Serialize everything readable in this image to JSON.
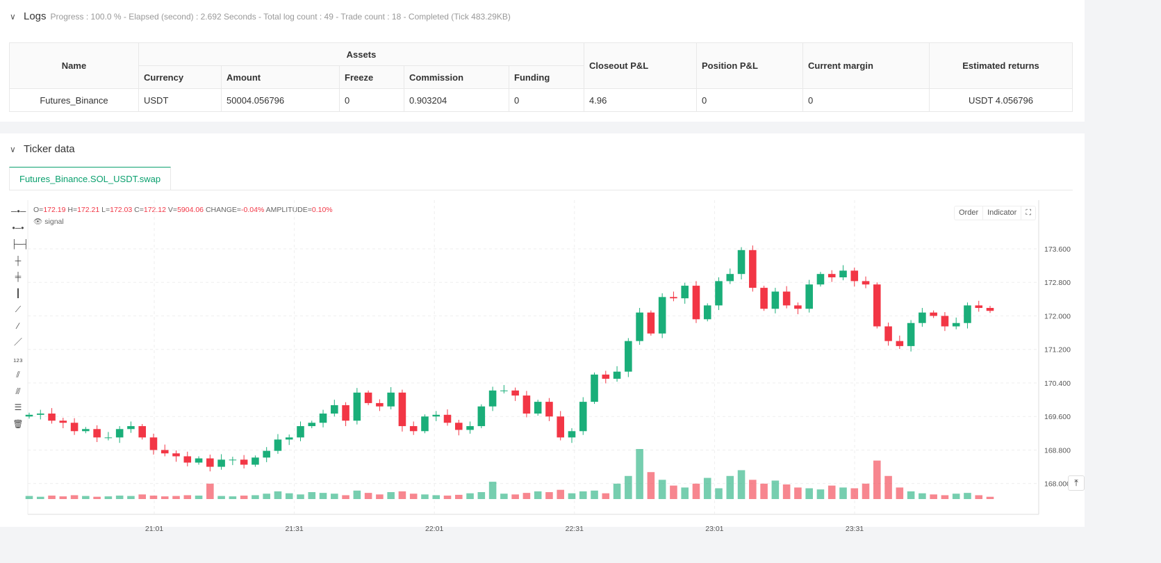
{
  "logs": {
    "title": "Logs",
    "summary": "Progress : 100.0 % - Elapsed (second) : 2.692  Seconds - Total log count : 49 - Trade count : 18 - Completed (Tick 483.29KB)",
    "table": {
      "headers": {
        "name": "Name",
        "assets": "Assets",
        "currency": "Currency",
        "amount": "Amount",
        "freeze": "Freeze",
        "commission": "Commission",
        "funding": "Funding",
        "closeout": "Closeout P&L",
        "position": "Position P&L",
        "margin": "Current margin",
        "returns": "Estimated returns"
      },
      "row": {
        "name": "Futures_Binance",
        "currency": "USDT",
        "amount": "50004.056796",
        "freeze": "0",
        "commission": "0.903204",
        "funding": "0",
        "closeout": "4.96",
        "position": "0",
        "margin": "0",
        "returns": "USDT 4.056796"
      }
    }
  },
  "ticker": {
    "title": "Ticker data",
    "tab": "Futures_Binance.SOL_USDT.swap",
    "legend": {
      "o_label": "O=",
      "o": "172.19",
      "h_label": "H=",
      "h": "172.21",
      "l_label": "L=",
      "l": "172.03",
      "c_label": "C=",
      "c": "172.12",
      "v_label": "V=",
      "v": "5904.06",
      "change_label": "CHANGE=",
      "change": "-0.04%",
      "amp_label": "AMPLITUDE=",
      "amp": "0.10%"
    },
    "signal": "signal",
    "order": "Order",
    "indicator": "Indicator"
  },
  "chart_data": {
    "type": "candlestick",
    "up_color": "#1aae79",
    "down_color": "#f23645",
    "ylim": [
      167.8,
      174.0
    ],
    "y_ticks": [
      "173.600",
      "172.800",
      "172.000",
      "171.200",
      "170.400",
      "169.600",
      "168.800",
      "168.000"
    ],
    "x_ticks": [
      "21:01",
      "21:31",
      "22:01",
      "22:31",
      "23:01",
      "23:31"
    ],
    "first_open": 169.6,
    "close": [
      169.64,
      169.67,
      169.5,
      169.45,
      169.25,
      169.3,
      169.1,
      169.1,
      169.3,
      169.37,
      169.1,
      168.8,
      168.72,
      168.65,
      168.5,
      168.6,
      168.4,
      168.57,
      168.57,
      168.45,
      168.62,
      168.78,
      169.05,
      169.1,
      169.37,
      169.45,
      169.67,
      169.87,
      169.5,
      170.17,
      169.92,
      169.84,
      170.17,
      169.37,
      169.25,
      169.6,
      169.64,
      169.45,
      169.28,
      169.37,
      169.84,
      170.22,
      170.22,
      170.1,
      169.67,
      169.95,
      169.6,
      169.1,
      169.25,
      169.95,
      170.6,
      170.5,
      170.67,
      171.4,
      172.08,
      171.58,
      172.45,
      172.42,
      172.72,
      171.92,
      172.25,
      172.83,
      173.0,
      173.57,
      172.67,
      172.17,
      172.58,
      172.25,
      172.17,
      172.75,
      173.0,
      172.92,
      173.08,
      172.83,
      172.75,
      171.75,
      171.4,
      171.28,
      171.83,
      172.08,
      172.0,
      171.75,
      171.83,
      172.25,
      172.19,
      172.12
    ],
    "volume": [
      8000,
      6000,
      9000,
      7000,
      10000,
      8000,
      6000,
      7000,
      9000,
      8000,
      12000,
      9000,
      7000,
      8000,
      10000,
      9000,
      40000,
      8000,
      7000,
      9000,
      10000,
      14000,
      20000,
      15000,
      12000,
      18000,
      16000,
      14000,
      10000,
      22000,
      16000,
      12000,
      18000,
      20000,
      14000,
      12000,
      10000,
      9000,
      11000,
      15000,
      18000,
      45000,
      14000,
      12000,
      16000,
      20000,
      18000,
      24000,
      15000,
      20000,
      22000,
      15000,
      40000,
      60000,
      130000,
      70000,
      50000,
      35000,
      30000,
      40000,
      55000,
      28000,
      60000,
      75000,
      50000,
      40000,
      48000,
      38000,
      30000,
      28000,
      25000,
      35000,
      30000,
      28000,
      40000,
      100000,
      60000,
      30000,
      20000,
      15000,
      12000,
      10000,
      14000,
      16000,
      10000,
      5904.06
    ]
  }
}
